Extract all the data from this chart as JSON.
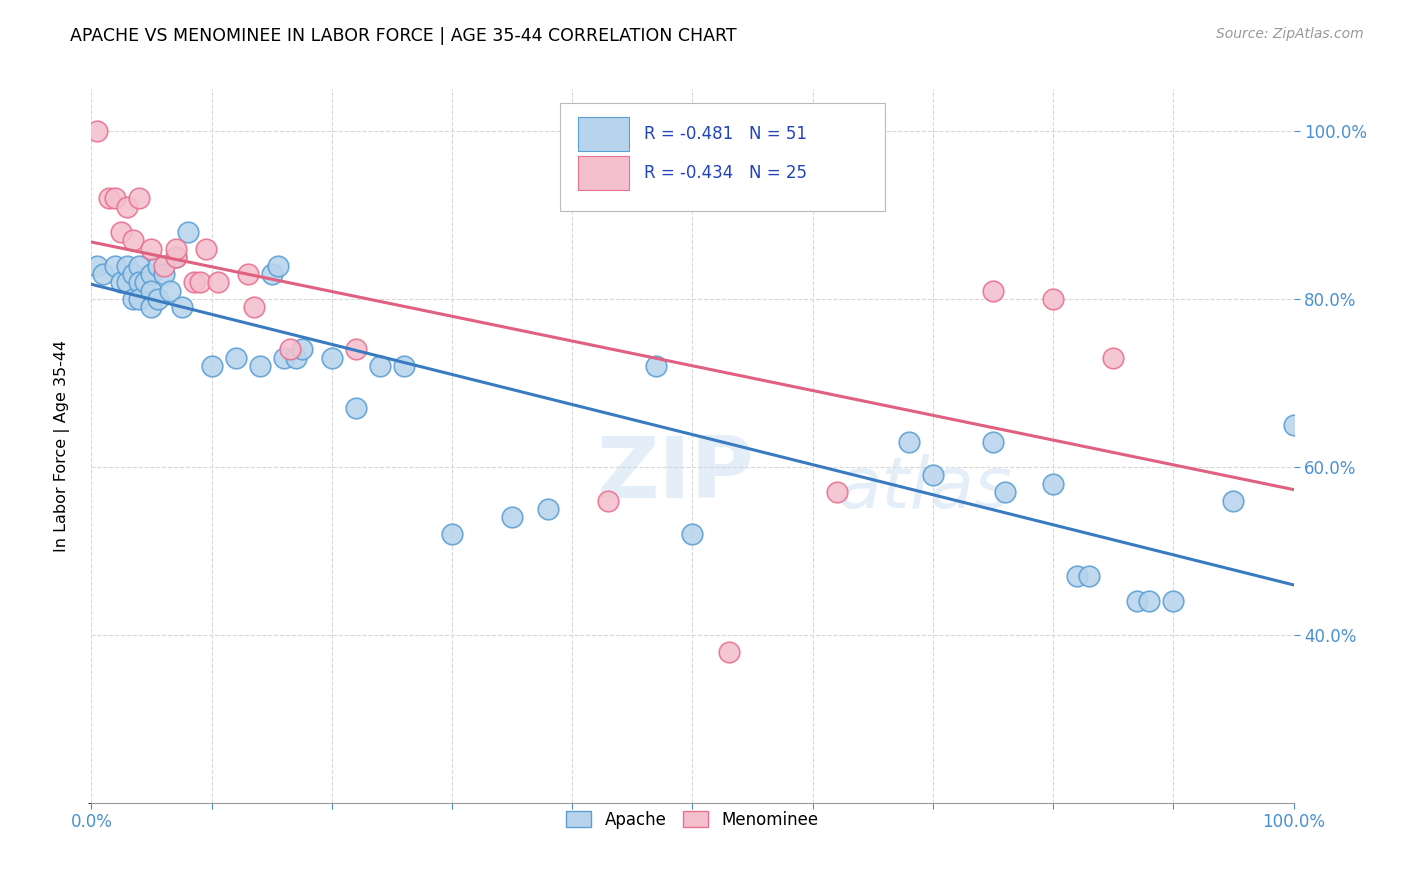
{
  "title": "APACHE VS MENOMINEE IN LABOR FORCE | AGE 35-44 CORRELATION CHART",
  "source": "Source: ZipAtlas.com",
  "ylabel": "In Labor Force | Age 35-44",
  "watermark_zip": "ZIP",
  "watermark_atlas": "atlas",
  "apache_R": -0.481,
  "apache_N": 51,
  "menominee_R": -0.434,
  "menominee_N": 25,
  "apache_fill": "#b8d4ec",
  "apache_edge": "#5a9fd4",
  "menominee_fill": "#f4c0ce",
  "menominee_edge": "#e87090",
  "apache_line": "#3a7bbf",
  "menominee_line": "#e06080",
  "legend_text_color": "#2244bb",
  "axis_tick_color": "#4a90d0",
  "apache_x": [
    0.005,
    0.01,
    0.02,
    0.025,
    0.03,
    0.03,
    0.035,
    0.035,
    0.04,
    0.04,
    0.04,
    0.045,
    0.05,
    0.05,
    0.05,
    0.055,
    0.055,
    0.06,
    0.065,
    0.07,
    0.075,
    0.08,
    0.1,
    0.12,
    0.14,
    0.15,
    0.155,
    0.16,
    0.17,
    0.175,
    0.2,
    0.22,
    0.24,
    0.26,
    0.3,
    0.35,
    0.38,
    0.47,
    0.5,
    0.68,
    0.7,
    0.75,
    0.76,
    0.8,
    0.82,
    0.83,
    0.87,
    0.88,
    0.9,
    0.95,
    1.0
  ],
  "apache_y": [
    0.84,
    0.83,
    0.84,
    0.82,
    0.84,
    0.82,
    0.83,
    0.8,
    0.84,
    0.82,
    0.8,
    0.82,
    0.83,
    0.81,
    0.79,
    0.84,
    0.8,
    0.83,
    0.81,
    0.85,
    0.79,
    0.88,
    0.72,
    0.73,
    0.72,
    0.83,
    0.84,
    0.73,
    0.73,
    0.74,
    0.73,
    0.67,
    0.72,
    0.72,
    0.52,
    0.54,
    0.55,
    0.72,
    0.52,
    0.63,
    0.59,
    0.63,
    0.57,
    0.58,
    0.47,
    0.47,
    0.44,
    0.44,
    0.44,
    0.56,
    0.65
  ],
  "menominee_x": [
    0.005,
    0.015,
    0.02,
    0.025,
    0.03,
    0.035,
    0.04,
    0.05,
    0.06,
    0.07,
    0.07,
    0.085,
    0.09,
    0.095,
    0.105,
    0.13,
    0.135,
    0.165,
    0.22,
    0.43,
    0.53,
    0.62,
    0.75,
    0.8,
    0.85
  ],
  "menominee_y": [
    1.0,
    0.92,
    0.92,
    0.88,
    0.91,
    0.87,
    0.92,
    0.86,
    0.84,
    0.85,
    0.86,
    0.82,
    0.82,
    0.86,
    0.82,
    0.83,
    0.79,
    0.74,
    0.74,
    0.56,
    0.38,
    0.57,
    0.81,
    0.8,
    0.73
  ],
  "xlim": [
    0.0,
    1.0
  ],
  "ylim_min": 0.2,
  "ylim_max": 1.05
}
